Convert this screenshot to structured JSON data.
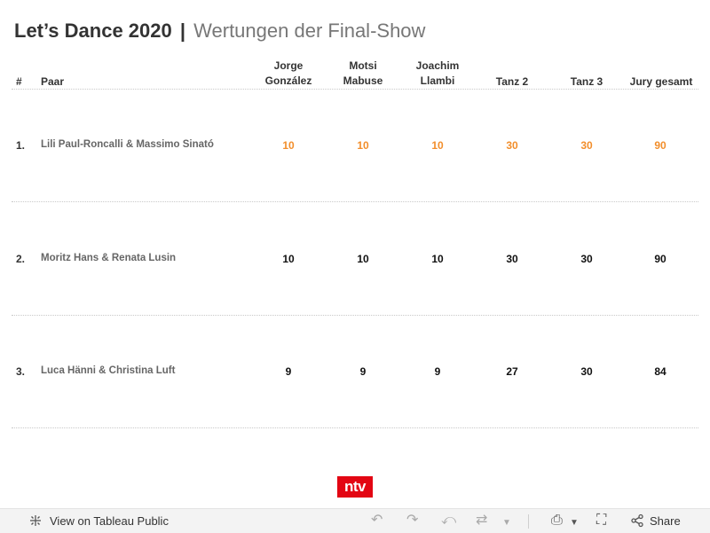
{
  "title": {
    "main": "Let’s Dance 2020",
    "separator": "|",
    "subtitle": "Wertungen der Final-Show"
  },
  "table": {
    "headers": {
      "rank": "#",
      "pair": "Paar",
      "jorge_l1": "Jorge",
      "jorge_l2": "González",
      "motsi_l1": "Motsi",
      "motsi_l2": "Mabuse",
      "joachim_l1": "Joachim",
      "joachim_l2": "Llambi",
      "tanz2": "Tanz 2",
      "tanz3": "Tanz 3",
      "jury": "Jury gesamt"
    },
    "rows": [
      {
        "rank": "1.",
        "pair": "Lili Paul-Roncalli & Massimo Sinató",
        "jorge": "10",
        "motsi": "10",
        "joachim": "10",
        "tanz2": "30",
        "tanz3": "30",
        "jury": "90",
        "highlight": true
      },
      {
        "rank": "2.",
        "pair": "Moritz Hans & Renata Lusin",
        "jorge": "10",
        "motsi": "10",
        "joachim": "10",
        "tanz2": "30",
        "tanz3": "30",
        "jury": "90",
        "highlight": false
      },
      {
        "rank": "3.",
        "pair": "Luca Hänni & Christina Luft",
        "jorge": "9",
        "motsi": "9",
        "joachim": "9",
        "tanz2": "27",
        "tanz3": "30",
        "jury": "84",
        "highlight": false
      }
    ]
  },
  "colors": {
    "highlight": "#f28e2b",
    "normal": "#111111",
    "logo_bg": "#e30613"
  },
  "logo": {
    "text": "ntv"
  },
  "footer": {
    "view_label": "View on Tableau Public",
    "share_label": "Share",
    "icons": [
      "tableau-icon",
      "undo-icon",
      "redo-icon",
      "revert-icon",
      "refresh-icon",
      "dropdown-icon",
      "download-icon",
      "fullscreen-icon",
      "share-icon"
    ]
  }
}
